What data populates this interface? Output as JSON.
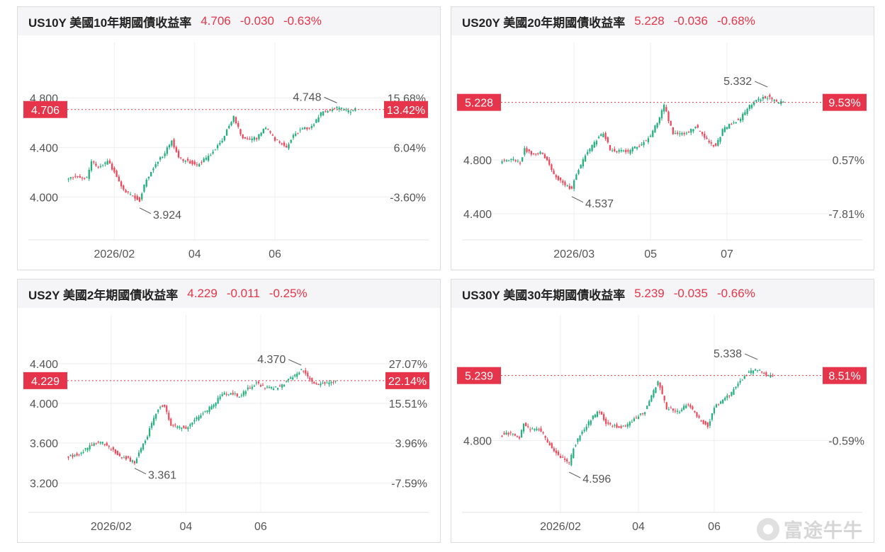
{
  "colors": {
    "up": "#22b07d",
    "down": "#f0465a",
    "accent": "#e6354a",
    "grid": "#eeeeee",
    "label": "#555555"
  },
  "watermark": {
    "text": "富途牛牛",
    "icon": "futu-logo-icon"
  },
  "panels": [
    {
      "title": "US10Y 美國10年期國債收益率",
      "value": "4.706",
      "change": "-0.030",
      "change_pct": "-0.63%"
    },
    {
      "title": "US20Y 美國20年期國債收益率",
      "value": "5.228",
      "change": "-0.036",
      "change_pct": "-0.68%"
    },
    {
      "title": "US2Y 美國2年期國債收益率",
      "value": "4.229",
      "change": "-0.011",
      "change_pct": "-0.25%"
    },
    {
      "title": "US30Y 美國30年期國債收益率",
      "value": "5.239",
      "change": "-0.035",
      "change_pct": "-0.66%"
    }
  ],
  "chart_data": [
    {
      "type": "candlestick",
      "title": "US10Y 美國10年期國債收益率",
      "ylim": [
        3.78,
        4.95
      ],
      "y_ticks": [
        "4.800",
        "4.400",
        "4.000"
      ],
      "y_tick_values": [
        4.8,
        4.4,
        4.0
      ],
      "pct_ticks": [
        "15.68%",
        "6.04%",
        "-3.60%"
      ],
      "pct_tick_values": [
        4.8,
        4.4,
        4.0
      ],
      "x_ticks": [
        "2026/02",
        "04",
        "06"
      ],
      "x_tick_index": [
        20,
        55,
        90
      ],
      "n": 126,
      "current": {
        "value": "4.706",
        "pct": "13.42%"
      },
      "high": {
        "label": "4.748",
        "index": 117
      },
      "low": {
        "label": "3.924",
        "index": 31
      },
      "anchors": [
        [
          0,
          4.16
        ],
        [
          4,
          4.17
        ],
        [
          8,
          4.15
        ],
        [
          10,
          4.28
        ],
        [
          13,
          4.24
        ],
        [
          17,
          4.29
        ],
        [
          20,
          4.2
        ],
        [
          24,
          4.06
        ],
        [
          28,
          4.01
        ],
        [
          31,
          3.97
        ],
        [
          33,
          4.1
        ],
        [
          37,
          4.24
        ],
        [
          42,
          4.36
        ],
        [
          45,
          4.46
        ],
        [
          48,
          4.31
        ],
        [
          52,
          4.29
        ],
        [
          56,
          4.26
        ],
        [
          60,
          4.31
        ],
        [
          66,
          4.43
        ],
        [
          72,
          4.65
        ],
        [
          76,
          4.47
        ],
        [
          82,
          4.47
        ],
        [
          86,
          4.56
        ],
        [
          90,
          4.46
        ],
        [
          93,
          4.43
        ],
        [
          95,
          4.4
        ],
        [
          98,
          4.5
        ],
        [
          102,
          4.55
        ],
        [
          106,
          4.56
        ],
        [
          110,
          4.67
        ],
        [
          114,
          4.71
        ],
        [
          118,
          4.72
        ],
        [
          122,
          4.69
        ],
        [
          125,
          4.706
        ]
      ]
    },
    {
      "type": "candlestick",
      "title": "US20Y 美國20年期國債收益率",
      "ylim": [
        4.32,
        5.4
      ],
      "y_ticks": [
        "4.800",
        "4.400"
      ],
      "y_tick_values": [
        4.8,
        4.4
      ],
      "pct_ticks": [
        "9.53%",
        "0.57%",
        "-7.81%"
      ],
      "pct_tick_values": [
        5.228,
        4.8,
        4.4
      ],
      "x_ticks": [
        "2026/03",
        "05",
        "07"
      ],
      "x_tick_index": [
        32,
        66,
        100
      ],
      "n": 126,
      "current": {
        "value": "5.228",
        "pct": "9.53%"
      },
      "high": {
        "label": "5.332",
        "index": 118
      },
      "low": {
        "label": "4.537",
        "index": 31
      },
      "anchors": [
        [
          0,
          4.8
        ],
        [
          4,
          4.81
        ],
        [
          8,
          4.78
        ],
        [
          10,
          4.88
        ],
        [
          13,
          4.84
        ],
        [
          17,
          4.86
        ],
        [
          20,
          4.79
        ],
        [
          24,
          4.67
        ],
        [
          28,
          4.62
        ],
        [
          31,
          4.58
        ],
        [
          33,
          4.7
        ],
        [
          37,
          4.83
        ],
        [
          42,
          4.95
        ],
        [
          45,
          5.0
        ],
        [
          48,
          4.88
        ],
        [
          52,
          4.87
        ],
        [
          56,
          4.86
        ],
        [
          60,
          4.9
        ],
        [
          66,
          4.97
        ],
        [
          72,
          5.2
        ],
        [
          76,
          5.0
        ],
        [
          82,
          5.0
        ],
        [
          86,
          5.05
        ],
        [
          90,
          4.96
        ],
        [
          93,
          4.92
        ],
        [
          95,
          4.9
        ],
        [
          98,
          5.02
        ],
        [
          102,
          5.07
        ],
        [
          106,
          5.11
        ],
        [
          110,
          5.2
        ],
        [
          114,
          5.25
        ],
        [
          118,
          5.27
        ],
        [
          122,
          5.23
        ],
        [
          125,
          5.228
        ]
      ]
    },
    {
      "type": "candlestick",
      "title": "US2Y 美國2年期國債收益率",
      "ylim": [
        3.06,
        4.52
      ],
      "y_ticks": [
        "4.400",
        "4.000",
        "3.600",
        "3.200"
      ],
      "y_tick_values": [
        4.4,
        4.0,
        3.6,
        3.2
      ],
      "pct_ticks": [
        "27.07%",
        "22.14%",
        "15.51%",
        "3.96%",
        "-7.59%"
      ],
      "pct_tick_values": [
        4.4,
        4.229,
        4.0,
        3.6,
        3.2
      ],
      "x_ticks": [
        "2026/02",
        "04",
        "06"
      ],
      "x_tick_index": [
        20,
        55,
        90
      ],
      "n": 126,
      "current": {
        "value": "4.229",
        "pct": "22.14%"
      },
      "high": {
        "label": "4.370",
        "index": 109
      },
      "low": {
        "label": "3.361",
        "index": 31
      },
      "anchors": [
        [
          0,
          3.47
        ],
        [
          4,
          3.48
        ],
        [
          8,
          3.54
        ],
        [
          12,
          3.6
        ],
        [
          16,
          3.6
        ],
        [
          20,
          3.54
        ],
        [
          24,
          3.47
        ],
        [
          28,
          3.44
        ],
        [
          31,
          3.4
        ],
        [
          33,
          3.5
        ],
        [
          37,
          3.68
        ],
        [
          42,
          3.95
        ],
        [
          45,
          3.98
        ],
        [
          48,
          3.78
        ],
        [
          52,
          3.76
        ],
        [
          56,
          3.75
        ],
        [
          60,
          3.85
        ],
        [
          64,
          3.92
        ],
        [
          68,
          3.98
        ],
        [
          72,
          4.1
        ],
        [
          76,
          4.1
        ],
        [
          80,
          4.07
        ],
        [
          84,
          4.15
        ],
        [
          88,
          4.2
        ],
        [
          92,
          4.16
        ],
        [
          96,
          4.15
        ],
        [
          100,
          4.18
        ],
        [
          104,
          4.25
        ],
        [
          109,
          4.34
        ],
        [
          113,
          4.24
        ],
        [
          117,
          4.19
        ],
        [
          121,
          4.2
        ],
        [
          125,
          4.229
        ]
      ]
    },
    {
      "type": "candlestick",
      "title": "US30Y 美國30年期國債收益率",
      "ylim": [
        4.42,
        5.4
      ],
      "y_ticks": [
        "4.800"
      ],
      "y_tick_values": [
        4.8
      ],
      "pct_ticks": [
        "8.51%",
        "-0.59%"
      ],
      "pct_tick_values": [
        5.239,
        4.8
      ],
      "x_ticks": [
        "2026/02",
        "04",
        "06"
      ],
      "x_tick_index": [
        27,
        63,
        98
      ],
      "n": 126,
      "current": {
        "value": "5.239",
        "pct": "8.51%"
      },
      "high": {
        "label": "5.338",
        "index": 118
      },
      "low": {
        "label": "4.596",
        "index": 31
      },
      "anchors": [
        [
          0,
          4.84
        ],
        [
          4,
          4.85
        ],
        [
          8,
          4.82
        ],
        [
          10,
          4.91
        ],
        [
          13,
          4.87
        ],
        [
          17,
          4.88
        ],
        [
          20,
          4.82
        ],
        [
          24,
          4.73
        ],
        [
          28,
          4.68
        ],
        [
          31,
          4.64
        ],
        [
          33,
          4.75
        ],
        [
          37,
          4.86
        ],
        [
          42,
          4.96
        ],
        [
          45,
          5.0
        ],
        [
          48,
          4.91
        ],
        [
          52,
          4.9
        ],
        [
          56,
          4.89
        ],
        [
          60,
          4.93
        ],
        [
          66,
          5.0
        ],
        [
          72,
          5.2
        ],
        [
          76,
          5.02
        ],
        [
          82,
          5.0
        ],
        [
          86,
          5.05
        ],
        [
          90,
          4.96
        ],
        [
          93,
          4.92
        ],
        [
          95,
          4.9
        ],
        [
          98,
          5.02
        ],
        [
          102,
          5.08
        ],
        [
          106,
          5.12
        ],
        [
          110,
          5.2
        ],
        [
          114,
          5.26
        ],
        [
          118,
          5.28
        ],
        [
          122,
          5.24
        ],
        [
          125,
          5.239
        ]
      ]
    }
  ]
}
